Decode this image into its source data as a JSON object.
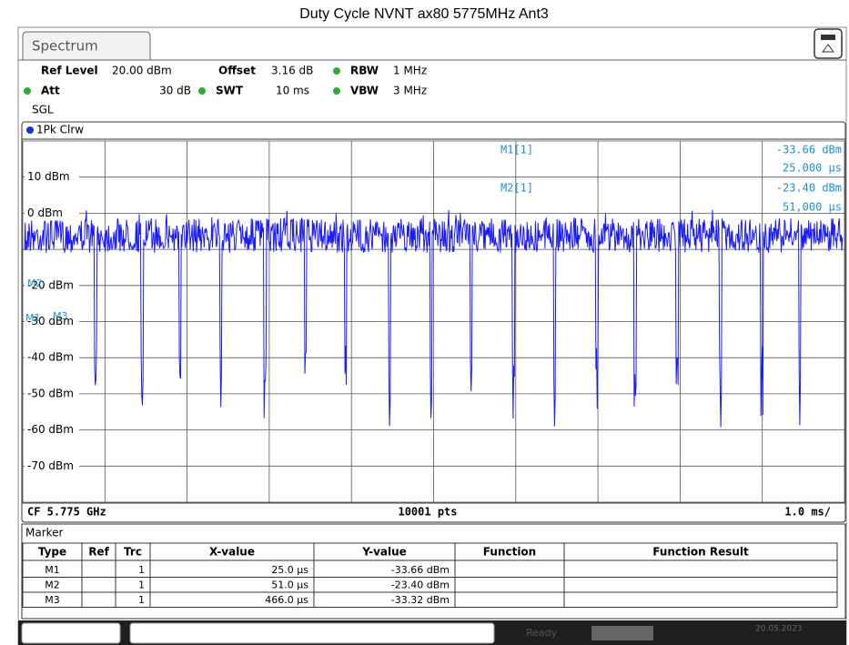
{
  "title": "Duty Cycle NVNT ax80 5775MHz Ant3",
  "tab": "Spectrum",
  "settings": {
    "ref_level_label": "Ref Level",
    "ref_level": "20.00 dBm",
    "offset_label": "Offset",
    "offset": "3.16 dB",
    "rbw_label": "RBW",
    "rbw": "1 MHz",
    "att_label": "Att",
    "att": "30 dB",
    "swt_label": "SWT",
    "swt": "10 ms",
    "vbw_label": "VBW",
    "vbw": "3 MHz",
    "mode": "SGL"
  },
  "trace_label": "1Pk Clrw",
  "y_labels": [
    "10 dBm",
    "0 dBm",
    "-20 dBm",
    "-30 dBm",
    "-40 dBm",
    "-50 dBm",
    "-60 dBm",
    "-70 dBm"
  ],
  "marker_readout": [
    {
      "name": "M1[1]",
      "y": "-33.66 dBm",
      "x": "25.000 µs"
    },
    {
      "name": "M2[1]",
      "y": "-23.40 dBm",
      "x": "51,000 µs"
    }
  ],
  "plot_markers": [
    "M2",
    "M1",
    "M3"
  ],
  "footer": {
    "cf": "CF 5.775 GHz",
    "pts": "10001 pts",
    "span": "1.0 ms/"
  },
  "table": {
    "title": "Marker",
    "header": [
      "Type",
      "Ref",
      "Trc",
      "X-value",
      "Y-value",
      "Function",
      "Function Result"
    ],
    "rows": [
      [
        "M1",
        "",
        "1",
        "25.0 µs",
        "-33.66 dBm",
        "",
        ""
      ],
      [
        "M2",
        "",
        "1",
        "51.0 µs",
        "-23.40 dBm",
        "",
        ""
      ],
      [
        "M3",
        "",
        "1",
        "466.0 µs",
        "-33.32 dBm",
        "",
        ""
      ]
    ]
  },
  "status": {
    "state": "Ready",
    "date": "20.05.2023"
  }
}
